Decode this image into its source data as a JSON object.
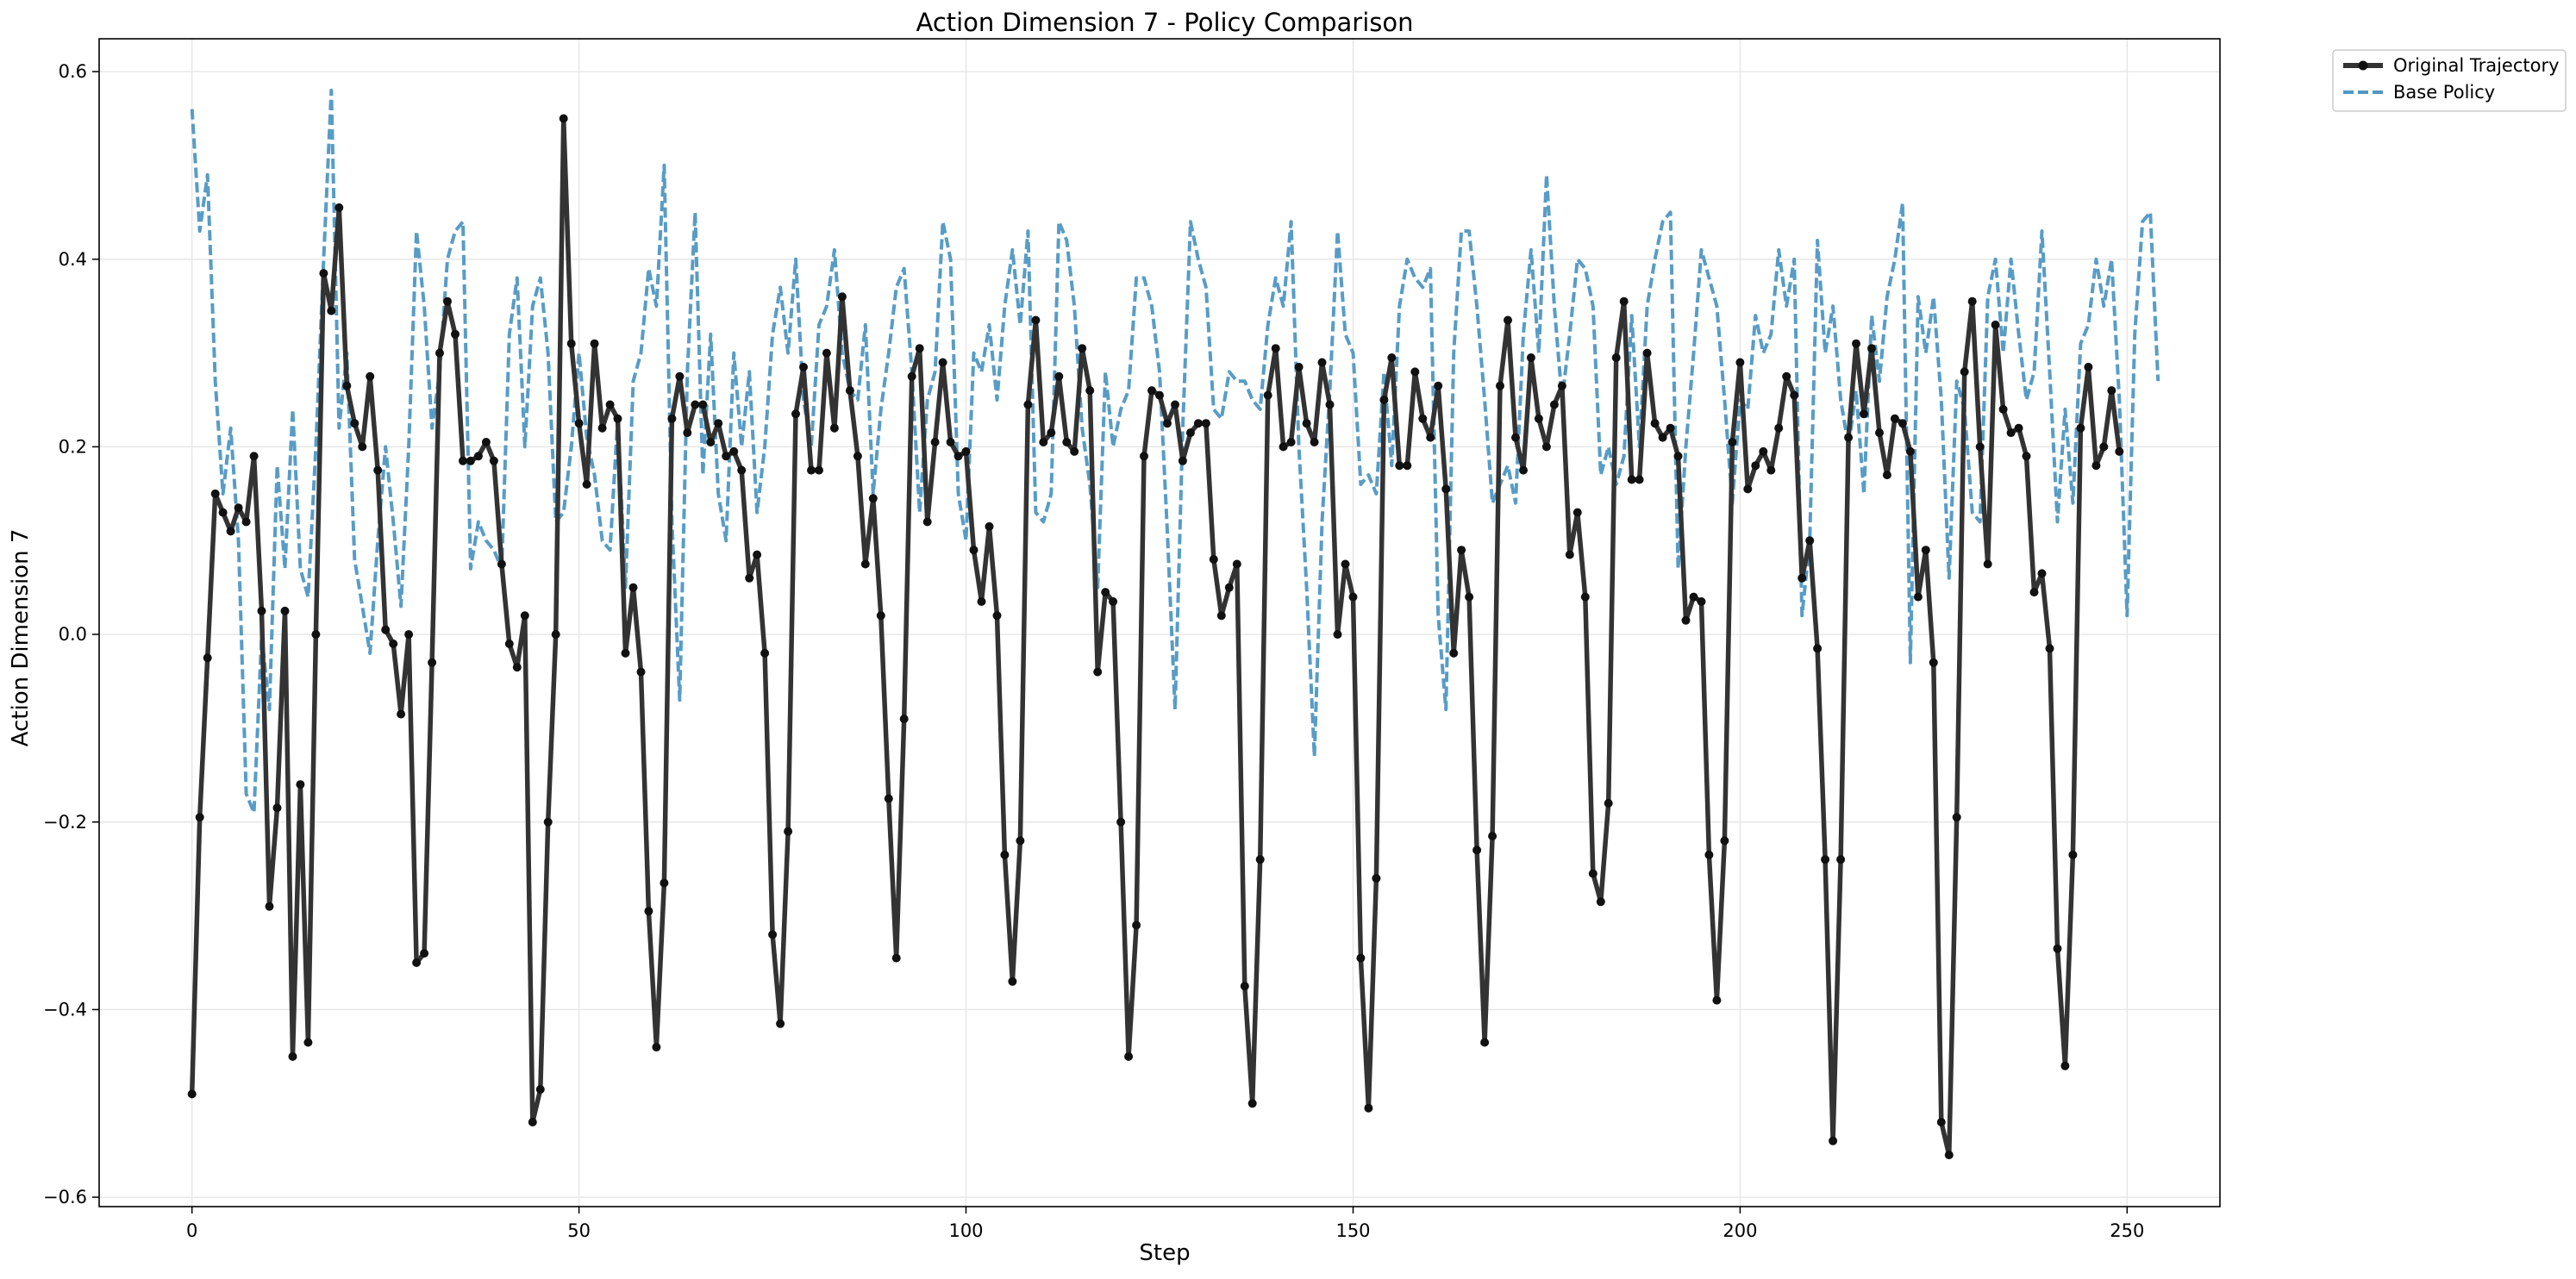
{
  "chart_data": {
    "type": "line",
    "title": "Action Dimension 7 - Policy Comparison",
    "xlabel": "Step",
    "ylabel": "Action Dimension 7",
    "xlim": [
      -12,
      262
    ],
    "ylim": [
      -0.61,
      0.635
    ],
    "xticks": [
      0,
      50,
      100,
      150,
      200,
      250
    ],
    "yticks": [
      -0.6,
      -0.4,
      -0.2,
      0.0,
      0.2,
      0.4,
      0.6
    ],
    "ytick_labels": [
      "−0.6",
      "−0.4",
      "−0.2",
      "0.0",
      "0.2",
      "0.4",
      "0.6"
    ],
    "grid": true,
    "legend_position": "outside-top-right",
    "series": [
      {
        "name": "Original Trajectory",
        "style": "solid-with-markers",
        "color": "#333333",
        "values": [
          -0.49,
          -0.195,
          -0.025,
          0.15,
          0.13,
          0.11,
          0.135,
          0.12,
          0.19,
          0.025,
          -0.29,
          -0.185,
          0.025,
          -0.45,
          -0.16,
          -0.435,
          0.0,
          0.385,
          0.345,
          0.455,
          0.265,
          0.225,
          0.2,
          0.275,
          0.175,
          0.005,
          -0.01,
          -0.085,
          0.0,
          -0.35,
          -0.34,
          -0.03,
          0.3,
          0.355,
          0.32,
          0.185,
          0.185,
          0.19,
          0.205,
          0.185,
          0.075,
          -0.01,
          -0.035,
          0.02,
          -0.52,
          -0.485,
          -0.2,
          0.0,
          0.55,
          0.31,
          0.225,
          0.16,
          0.31,
          0.22,
          0.245,
          0.23,
          -0.02,
          0.05,
          -0.04,
          -0.295,
          -0.44,
          -0.265,
          0.23,
          0.275,
          0.215,
          0.245,
          0.245,
          0.205,
          0.225,
          0.19,
          0.195,
          0.175,
          0.06,
          0.085,
          -0.02,
          -0.32,
          -0.415,
          -0.21,
          0.235,
          0.285,
          0.175,
          0.175,
          0.3,
          0.22,
          0.36,
          0.26,
          0.19,
          0.075,
          0.145,
          0.02,
          -0.175,
          -0.345,
          -0.09,
          0.275,
          0.305,
          0.12,
          0.205,
          0.29,
          0.205,
          0.19,
          0.195,
          0.09,
          0.035,
          0.115,
          0.02,
          -0.235,
          -0.37,
          -0.22,
          0.245,
          0.335,
          0.205,
          0.215,
          0.275,
          0.205,
          0.195,
          0.305,
          0.26,
          -0.04,
          0.045,
          0.035,
          -0.2,
          -0.45,
          -0.31,
          0.19,
          0.26,
          0.255,
          0.225,
          0.245,
          0.185,
          0.215,
          0.225,
          0.225,
          0.08,
          0.02,
          0.05,
          0.075,
          -0.375,
          -0.5,
          -0.24,
          0.255,
          0.305,
          0.2,
          0.205,
          0.285,
          0.225,
          0.205,
          0.29,
          0.245,
          0.0,
          0.075,
          0.04,
          -0.345,
          -0.505,
          -0.26,
          0.25,
          0.295,
          0.18,
          0.18,
          0.28,
          0.23,
          0.21,
          0.265,
          0.155,
          -0.02,
          0.09,
          0.04,
          -0.23,
          -0.435,
          -0.215,
          0.265,
          0.335,
          0.21,
          0.175,
          0.295,
          0.23,
          0.2,
          0.245,
          0.265,
          0.085,
          0.13,
          0.04,
          -0.255,
          -0.285,
          -0.18,
          0.295,
          0.355,
          0.165,
          0.165,
          0.3,
          0.225,
          0.21,
          0.22,
          0.19,
          0.015,
          0.04,
          0.035,
          -0.235,
          -0.39,
          -0.22,
          0.205,
          0.29,
          0.155,
          0.18,
          0.195,
          0.175,
          0.22,
          0.275,
          0.255,
          0.06,
          0.1,
          -0.015,
          -0.24,
          -0.54,
          -0.24,
          0.21,
          0.31,
          0.235,
          0.305,
          0.215,
          0.17,
          0.23,
          0.225,
          0.195,
          0.04,
          0.09,
          -0.03,
          -0.52,
          -0.555,
          -0.195,
          0.28,
          0.355,
          0.2,
          0.075,
          0.33,
          0.24,
          0.215,
          0.22,
          0.19,
          0.045,
          0.065,
          -0.015,
          -0.335,
          -0.46,
          -0.235,
          0.22,
          0.285,
          0.18,
          0.2,
          0.26,
          0.195
        ]
      },
      {
        "name": "Base Policy",
        "style": "dashed",
        "color": "#4f97c3",
        "values": [
          0.56,
          0.43,
          0.49,
          0.27,
          0.15,
          0.22,
          0.1,
          -0.17,
          -0.19,
          0.0,
          -0.08,
          0.18,
          0.07,
          0.24,
          0.07,
          0.04,
          0.2,
          0.4,
          0.58,
          0.22,
          0.3,
          0.08,
          0.03,
          -0.02,
          0.1,
          0.2,
          0.12,
          0.03,
          0.2,
          0.43,
          0.35,
          0.22,
          0.28,
          0.4,
          0.43,
          0.44,
          0.07,
          0.12,
          0.1,
          0.09,
          0.07,
          0.32,
          0.38,
          0.2,
          0.35,
          0.38,
          0.3,
          0.12,
          0.13,
          0.2,
          0.3,
          0.21,
          0.17,
          0.1,
          0.09,
          0.23,
          0.05,
          0.27,
          0.3,
          0.39,
          0.35,
          0.5,
          0.12,
          -0.07,
          0.28,
          0.45,
          0.17,
          0.32,
          0.15,
          0.1,
          0.3,
          0.2,
          0.28,
          0.13,
          0.2,
          0.32,
          0.37,
          0.3,
          0.4,
          0.25,
          0.2,
          0.33,
          0.35,
          0.41,
          0.3,
          0.26,
          0.25,
          0.33,
          0.15,
          0.24,
          0.3,
          0.37,
          0.39,
          0.28,
          0.13,
          0.25,
          0.28,
          0.44,
          0.4,
          0.15,
          0.1,
          0.3,
          0.28,
          0.33,
          0.25,
          0.35,
          0.41,
          0.33,
          0.43,
          0.13,
          0.12,
          0.15,
          0.44,
          0.42,
          0.35,
          0.22,
          0.16,
          0.05,
          0.28,
          0.2,
          0.24,
          0.26,
          0.38,
          0.38,
          0.35,
          0.28,
          0.11,
          -0.08,
          0.22,
          0.44,
          0.4,
          0.37,
          0.24,
          0.23,
          0.28,
          0.27,
          0.27,
          0.25,
          0.24,
          0.33,
          0.38,
          0.35,
          0.44,
          0.2,
          0.05,
          -0.13,
          0.12,
          0.26,
          0.43,
          0.32,
          0.3,
          0.16,
          0.17,
          0.15,
          0.28,
          0.18,
          0.35,
          0.4,
          0.38,
          0.37,
          0.39,
          0.02,
          -0.08,
          0.3,
          0.43,
          0.43,
          0.35,
          0.25,
          0.14,
          0.16,
          0.18,
          0.14,
          0.32,
          0.41,
          0.3,
          0.49,
          0.35,
          0.25,
          0.32,
          0.4,
          0.39,
          0.35,
          0.17,
          0.2,
          0.16,
          0.19,
          0.34,
          0.2,
          0.35,
          0.4,
          0.44,
          0.45,
          0.07,
          0.2,
          0.3,
          0.41,
          0.38,
          0.35,
          0.25,
          0.14,
          0.25,
          0.24,
          0.34,
          0.3,
          0.32,
          0.41,
          0.35,
          0.4,
          0.02,
          0.1,
          0.42,
          0.3,
          0.35,
          0.25,
          0.2,
          0.26,
          0.15,
          0.34,
          0.27,
          0.36,
          0.4,
          0.46,
          -0.03,
          0.36,
          0.3,
          0.36,
          0.25,
          0.06,
          0.27,
          0.24,
          0.13,
          0.12,
          0.36,
          0.4,
          0.3,
          0.4,
          0.32,
          0.25,
          0.28,
          0.43,
          0.28,
          0.12,
          0.24,
          0.14,
          0.31,
          0.33,
          0.4,
          0.35,
          0.4,
          0.25,
          0.02,
          0.32,
          0.44,
          0.45,
          0.27
        ]
      }
    ]
  }
}
